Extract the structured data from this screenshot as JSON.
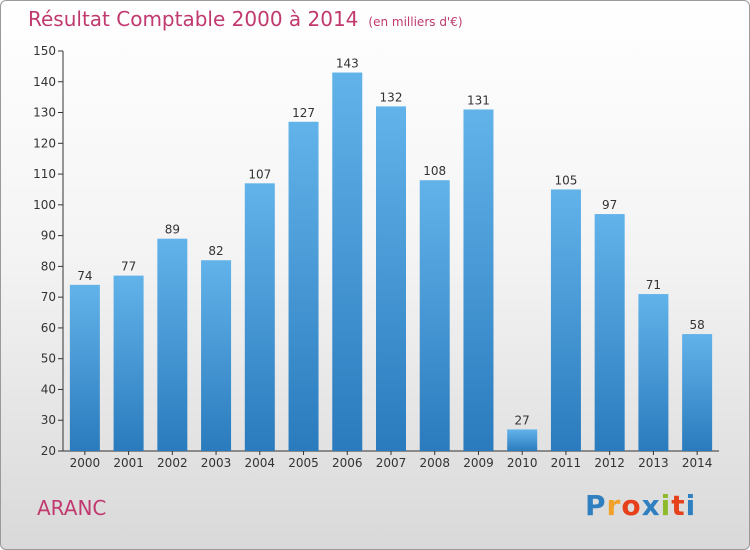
{
  "header": {
    "title": "Résultat Comptable 2000 à 2014",
    "unit": "(en milliers d'€)"
  },
  "footer": {
    "commune": "ARANC",
    "logo_letters": [
      "P",
      "r",
      "o",
      "x",
      "i",
      "t",
      "i"
    ],
    "logo_colors": [
      "#2f7fc1",
      "#f0a22a",
      "#e7411c",
      "#2f7fc1",
      "#8dbb2b",
      "#e7411c",
      "#2f7fc1"
    ]
  },
  "colors": {
    "bar_top": "#62b3ea",
    "bar_bottom": "#2a7bbd",
    "title": "#c0396f"
  },
  "chart_data": {
    "type": "bar",
    "title": "Résultat Comptable 2000 à 2014",
    "ylabel": "en milliers d'€",
    "categories": [
      "2000",
      "2001",
      "2002",
      "2003",
      "2004",
      "2005",
      "2006",
      "2007",
      "2008",
      "2009",
      "2010",
      "2011",
      "2012",
      "2013",
      "2014"
    ],
    "values": [
      74,
      77,
      89,
      82,
      107,
      127,
      143,
      132,
      108,
      131,
      27,
      105,
      97,
      71,
      58
    ],
    "ylim": [
      20,
      150
    ],
    "yticks": [
      20,
      30,
      40,
      50,
      60,
      70,
      80,
      90,
      100,
      110,
      120,
      130,
      140,
      150
    ],
    "grid": false
  }
}
